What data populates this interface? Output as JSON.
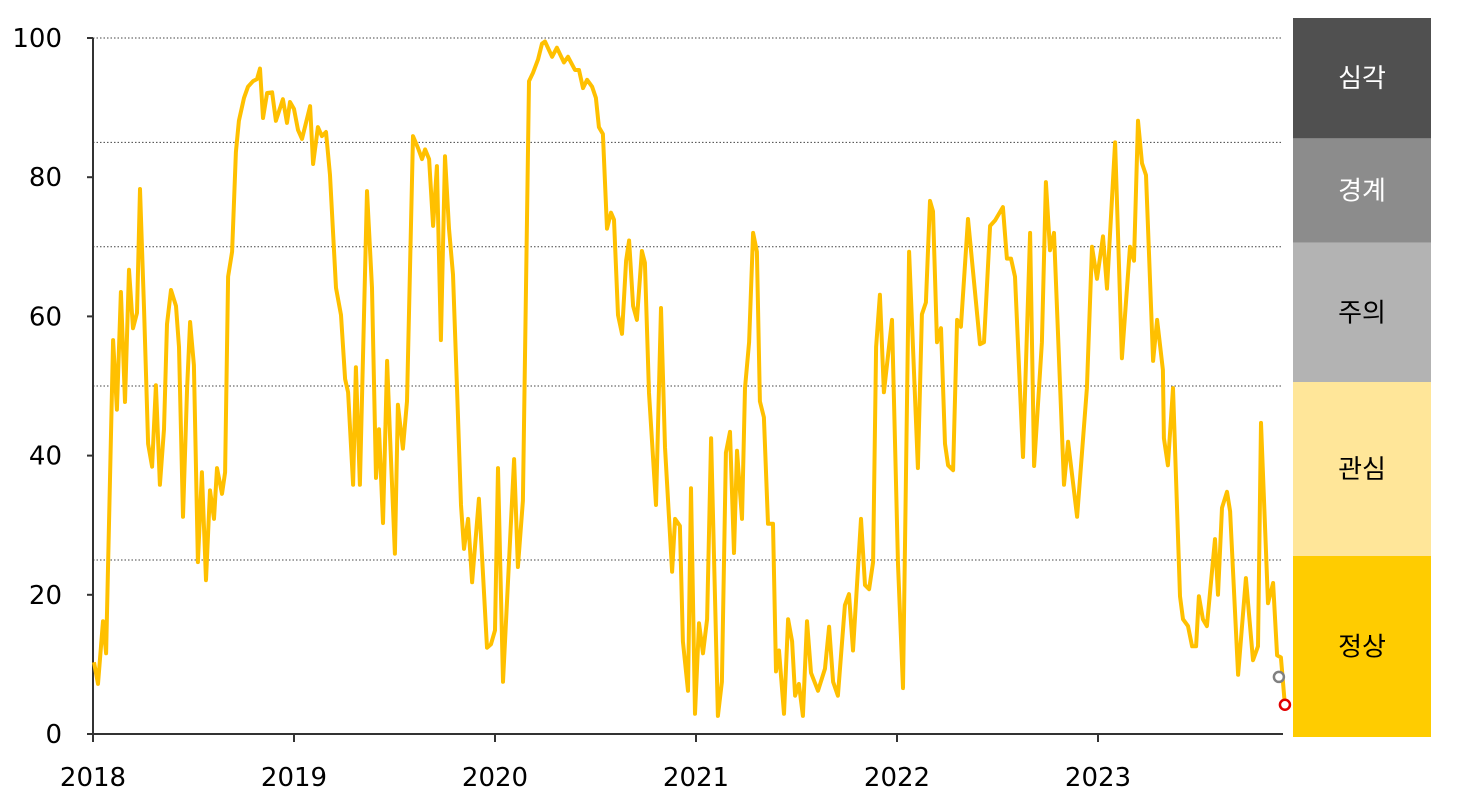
{
  "chart_data": {
    "type": "line",
    "title": "",
    "xlabel": "",
    "ylabel": "",
    "xlim": [
      2018,
      2023.95
    ],
    "ylim": [
      0,
      100
    ],
    "x_ticks": [
      2018,
      2019,
      2020,
      2021,
      2022,
      2023
    ],
    "x_tick_labels": [
      "2018",
      "2019",
      "2020",
      "2021",
      "2022",
      "2023"
    ],
    "y_ticks": [
      0,
      20,
      40,
      60,
      80,
      100
    ],
    "y_tick_labels": [
      "0",
      "20",
      "40",
      "60",
      "80",
      "100"
    ],
    "reference_lines": [
      25,
      50,
      70,
      85,
      100
    ],
    "grid": "dotted horizontal lines at band thresholds",
    "line_color": "#FFC000",
    "bands": [
      {
        "label": "심각",
        "from": 85,
        "to": 100,
        "color": "#505050",
        "text_color": "#ffffff"
      },
      {
        "label": "경계",
        "from": 70,
        "to": 85,
        "color": "#8c8c8c",
        "text_color": "#ffffff"
      },
      {
        "label": "주의",
        "from": 50,
        "to": 70,
        "color": "#b3b3b3",
        "text_color": "#000000"
      },
      {
        "label": "관심",
        "from": 25,
        "to": 50,
        "color": "#ffe699",
        "text_color": "#000000"
      },
      {
        "label": "정상",
        "from": 0,
        "to": 25,
        "color": "#ffcc00",
        "text_color": "#000000"
      }
    ],
    "markers": [
      {
        "x": 2023.9,
        "y": 8.2,
        "color": "#808080"
      },
      {
        "x": 2023.93,
        "y": 4.2,
        "color": "#e00000"
      }
    ],
    "series": [
      {
        "points": [
          [
            2018.005,
            10.3
          ],
          [
            2018.025,
            7.2
          ],
          [
            2018.05,
            16.2
          ],
          [
            2018.065,
            11.6
          ],
          [
            2018.1,
            56.6
          ],
          [
            2018.119,
            46.6
          ],
          [
            2018.139,
            63.5
          ],
          [
            2018.159,
            47.7
          ],
          [
            2018.179,
            66.7
          ],
          [
            2018.199,
            58.3
          ],
          [
            2018.219,
            60.5
          ],
          [
            2018.234,
            78.3
          ],
          [
            2018.254,
            60.8
          ],
          [
            2018.274,
            41.7
          ],
          [
            2018.294,
            38.4
          ],
          [
            2018.313,
            50.1
          ],
          [
            2018.333,
            35.8
          ],
          [
            2018.353,
            43.8
          ],
          [
            2018.368,
            58.9
          ],
          [
            2018.388,
            63.8
          ],
          [
            2018.413,
            61.5
          ],
          [
            2018.428,
            55.6
          ],
          [
            2018.448,
            31.2
          ],
          [
            2018.468,
            49.7
          ],
          [
            2018.483,
            59.2
          ],
          [
            2018.502,
            53.0
          ],
          [
            2018.522,
            24.7
          ],
          [
            2018.542,
            37.6
          ],
          [
            2018.562,
            22.1
          ],
          [
            2018.582,
            35.0
          ],
          [
            2018.602,
            30.9
          ],
          [
            2018.617,
            38.2
          ],
          [
            2018.642,
            34.5
          ],
          [
            2018.657,
            37.6
          ],
          [
            2018.672,
            65.7
          ],
          [
            2018.692,
            69.3
          ],
          [
            2018.711,
            83.6
          ],
          [
            2018.726,
            88.1
          ],
          [
            2018.751,
            91.4
          ],
          [
            2018.771,
            93.0
          ],
          [
            2018.796,
            93.8
          ],
          [
            2018.816,
            94.1
          ],
          [
            2018.831,
            95.6
          ],
          [
            2018.846,
            88.5
          ],
          [
            2018.866,
            92.1
          ],
          [
            2018.891,
            92.2
          ],
          [
            2018.91,
            88.1
          ],
          [
            2018.945,
            91.2
          ],
          [
            2018.965,
            87.8
          ],
          [
            2018.98,
            90.8
          ],
          [
            2019.0,
            89.8
          ],
          [
            2019.02,
            86.8
          ],
          [
            2019.04,
            85.5
          ],
          [
            2019.08,
            90.2
          ],
          [
            2019.095,
            81.9
          ],
          [
            2019.119,
            87.2
          ],
          [
            2019.139,
            85.9
          ],
          [
            2019.159,
            86.5
          ],
          [
            2019.179,
            80.3
          ],
          [
            2019.209,
            64.1
          ],
          [
            2019.234,
            60.2
          ],
          [
            2019.254,
            51.0
          ],
          [
            2019.269,
            49.1
          ],
          [
            2019.294,
            35.8
          ],
          [
            2019.308,
            52.7
          ],
          [
            2019.328,
            35.8
          ],
          [
            2019.363,
            78.0
          ],
          [
            2019.388,
            64.1
          ],
          [
            2019.408,
            36.8
          ],
          [
            2019.423,
            43.8
          ],
          [
            2019.443,
            30.3
          ],
          [
            2019.463,
            53.6
          ],
          [
            2019.478,
            42.5
          ],
          [
            2019.502,
            25.9
          ],
          [
            2019.517,
            47.3
          ],
          [
            2019.542,
            41.0
          ],
          [
            2019.562,
            47.8
          ],
          [
            2019.592,
            85.9
          ],
          [
            2019.617,
            84.2
          ],
          [
            2019.637,
            82.6
          ],
          [
            2019.652,
            84.0
          ],
          [
            2019.672,
            82.6
          ],
          [
            2019.692,
            73.0
          ],
          [
            2019.711,
            81.6
          ],
          [
            2019.731,
            56.6
          ],
          [
            2019.751,
            83.0
          ],
          [
            2019.771,
            72.6
          ],
          [
            2019.791,
            66.0
          ],
          [
            2019.811,
            49.7
          ],
          [
            2019.831,
            32.9
          ],
          [
            2019.846,
            26.6
          ],
          [
            2019.866,
            30.9
          ],
          [
            2019.886,
            21.8
          ],
          [
            2019.92,
            33.8
          ],
          [
            2019.96,
            12.4
          ],
          [
            2019.98,
            12.9
          ],
          [
            2020.0,
            14.9
          ],
          [
            2020.015,
            38.2
          ],
          [
            2020.04,
            7.5
          ],
          [
            2020.095,
            39.5
          ],
          [
            2020.114,
            24.0
          ],
          [
            2020.139,
            33.5
          ],
          [
            2020.169,
            93.8
          ],
          [
            2020.189,
            95.0
          ],
          [
            2020.214,
            96.9
          ],
          [
            2020.234,
            99.2
          ],
          [
            2020.249,
            99.5
          ],
          [
            2020.284,
            97.3
          ],
          [
            2020.308,
            98.6
          ],
          [
            2020.343,
            96.5
          ],
          [
            2020.363,
            97.3
          ],
          [
            2020.398,
            95.4
          ],
          [
            2020.418,
            95.4
          ],
          [
            2020.438,
            92.8
          ],
          [
            2020.458,
            94.0
          ],
          [
            2020.483,
            93.0
          ],
          [
            2020.502,
            91.4
          ],
          [
            2020.517,
            87.2
          ],
          [
            2020.537,
            86.2
          ],
          [
            2020.557,
            72.6
          ],
          [
            2020.577,
            74.9
          ],
          [
            2020.592,
            73.9
          ],
          [
            2020.612,
            60.2
          ],
          [
            2020.632,
            57.5
          ],
          [
            2020.652,
            68.0
          ],
          [
            2020.667,
            70.9
          ],
          [
            2020.687,
            61.5
          ],
          [
            2020.706,
            59.5
          ],
          [
            2020.731,
            69.4
          ],
          [
            2020.746,
            67.7
          ],
          [
            2020.766,
            49.0
          ],
          [
            2020.801,
            32.9
          ],
          [
            2020.826,
            61.2
          ],
          [
            2020.846,
            41.2
          ],
          [
            2020.881,
            23.3
          ],
          [
            2020.896,
            30.9
          ],
          [
            2020.92,
            29.9
          ],
          [
            2020.935,
            13.3
          ],
          [
            2020.96,
            6.2
          ],
          [
            2020.975,
            35.3
          ],
          [
            2020.995,
            2.9
          ],
          [
            2021.015,
            15.9
          ],
          [
            2021.035,
            11.6
          ],
          [
            2021.055,
            16.5
          ],
          [
            2021.075,
            42.5
          ],
          [
            2021.109,
            2.6
          ],
          [
            2021.129,
            7.5
          ],
          [
            2021.149,
            40.4
          ],
          [
            2021.169,
            43.4
          ],
          [
            2021.189,
            26.0
          ],
          [
            2021.204,
            40.7
          ],
          [
            2021.229,
            30.9
          ],
          [
            2021.244,
            49.7
          ],
          [
            2021.264,
            56.3
          ],
          [
            2021.284,
            72.0
          ],
          [
            2021.303,
            69.3
          ],
          [
            2021.318,
            47.8
          ],
          [
            2021.338,
            45.5
          ],
          [
            2021.358,
            30.2
          ],
          [
            2021.383,
            30.2
          ],
          [
            2021.398,
            9.0
          ],
          [
            2021.413,
            12.0
          ],
          [
            2021.438,
            2.9
          ],
          [
            2021.458,
            16.5
          ],
          [
            2021.478,
            13.3
          ],
          [
            2021.493,
            5.5
          ],
          [
            2021.512,
            7.2
          ],
          [
            2021.532,
            2.6
          ],
          [
            2021.552,
            16.2
          ],
          [
            2021.572,
            8.8
          ],
          [
            2021.607,
            6.2
          ],
          [
            2021.642,
            9.4
          ],
          [
            2021.662,
            15.4
          ],
          [
            2021.682,
            7.5
          ],
          [
            2021.706,
            5.5
          ],
          [
            2021.741,
            18.5
          ],
          [
            2021.761,
            20.1
          ],
          [
            2021.781,
            12.0
          ],
          [
            2021.821,
            30.9
          ],
          [
            2021.841,
            21.4
          ],
          [
            2021.861,
            20.8
          ],
          [
            2021.881,
            24.7
          ],
          [
            2021.896,
            55.6
          ],
          [
            2021.915,
            63.1
          ],
          [
            2021.935,
            49.1
          ],
          [
            2021.975,
            59.5
          ],
          [
            2022.005,
            24.4
          ],
          [
            2022.03,
            6.6
          ],
          [
            2022.06,
            69.3
          ],
          [
            2022.104,
            38.2
          ],
          [
            2022.124,
            60.3
          ],
          [
            2022.144,
            62.0
          ],
          [
            2022.164,
            76.6
          ],
          [
            2022.179,
            75.1
          ],
          [
            2022.199,
            56.3
          ],
          [
            2022.219,
            58.3
          ],
          [
            2022.239,
            41.7
          ],
          [
            2022.254,
            38.6
          ],
          [
            2022.279,
            37.9
          ],
          [
            2022.299,
            59.5
          ],
          [
            2022.318,
            58.5
          ],
          [
            2022.353,
            74.0
          ],
          [
            2022.413,
            56.0
          ],
          [
            2022.433,
            56.3
          ],
          [
            2022.463,
            73.0
          ],
          [
            2022.488,
            73.8
          ],
          [
            2022.527,
            75.7
          ],
          [
            2022.547,
            68.3
          ],
          [
            2022.567,
            68.3
          ],
          [
            2022.587,
            65.7
          ],
          [
            2022.627,
            39.8
          ],
          [
            2022.662,
            72.0
          ],
          [
            2022.682,
            38.5
          ],
          [
            2022.721,
            56.3
          ],
          [
            2022.741,
            79.3
          ],
          [
            2022.761,
            69.5
          ],
          [
            2022.781,
            72.0
          ],
          [
            2022.831,
            35.8
          ],
          [
            2022.851,
            42.0
          ],
          [
            2022.896,
            31.2
          ],
          [
            2022.945,
            49.7
          ],
          [
            2022.97,
            70.0
          ],
          [
            2022.995,
            65.4
          ],
          [
            2023.025,
            71.5
          ],
          [
            2023.045,
            64.0
          ],
          [
            2023.085,
            85.0
          ],
          [
            2023.119,
            54.0
          ],
          [
            2023.159,
            70.0
          ],
          [
            2023.179,
            68.0
          ],
          [
            2023.199,
            88.1
          ],
          [
            2023.219,
            82.0
          ],
          [
            2023.239,
            80.3
          ],
          [
            2023.274,
            53.6
          ],
          [
            2023.294,
            59.5
          ],
          [
            2023.323,
            52.3
          ],
          [
            2023.328,
            42.5
          ],
          [
            2023.348,
            38.6
          ],
          [
            2023.373,
            49.7
          ],
          [
            2023.408,
            19.8
          ],
          [
            2023.423,
            16.5
          ],
          [
            2023.448,
            15.5
          ],
          [
            2023.468,
            12.6
          ],
          [
            2023.488,
            12.6
          ],
          [
            2023.502,
            19.8
          ],
          [
            2023.522,
            16.5
          ],
          [
            2023.542,
            15.5
          ],
          [
            2023.582,
            28.0
          ],
          [
            2023.597,
            20.0
          ],
          [
            2023.617,
            32.5
          ],
          [
            2023.642,
            34.8
          ],
          [
            2023.657,
            32.0
          ],
          [
            2023.697,
            8.5
          ],
          [
            2023.736,
            22.4
          ],
          [
            2023.771,
            10.6
          ],
          [
            2023.796,
            12.6
          ],
          [
            2023.811,
            44.7
          ],
          [
            2023.846,
            18.8
          ],
          [
            2023.871,
            21.7
          ],
          [
            2023.891,
            11.3
          ],
          [
            2023.91,
            11.0
          ],
          [
            2023.93,
            4.2
          ]
        ]
      }
    ]
  }
}
